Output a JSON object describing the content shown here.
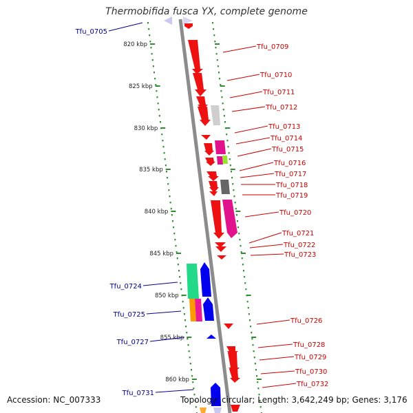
{
  "title": "Thermobifida fusca YX, complete genome",
  "accession": "Accession: NC_007333",
  "topology": "Topology: circular; Length: 3,642,249 bp; Genes: 3,176",
  "colors": {
    "backbone": "#8c8c8c",
    "scale_dots": "#2e8b2e",
    "label_forward": "#cc0000",
    "label_reverse": "#00008b"
  },
  "scale_ticks": [
    "820 kbp",
    "825 kbp",
    "830 kbp",
    "835 kbp",
    "840 kbp",
    "845 kbp",
    "850 kbp",
    "855 kbp",
    "860 kbp"
  ],
  "right_labels": [
    "Tfu_0709",
    "Tfu_0710",
    "Tfu_0711",
    "Tfu_0712",
    "Tfu_0713",
    "Tfu_0714",
    "Tfu_0715",
    "Tfu_0716",
    "Tfu_0717",
    "Tfu_0718",
    "Tfu_0719",
    "Tfu_0720",
    "Tfu_0721",
    "Tfu_0722",
    "Tfu_0723",
    "Tfu_0726",
    "Tfu_0728",
    "Tfu_0729",
    "Tfu_0730",
    "Tfu_0732"
  ],
  "left_labels": [
    "Tfu_0705",
    "Tfu_0724",
    "Tfu_0725",
    "Tfu_0727",
    "Tfu_0731"
  ]
}
